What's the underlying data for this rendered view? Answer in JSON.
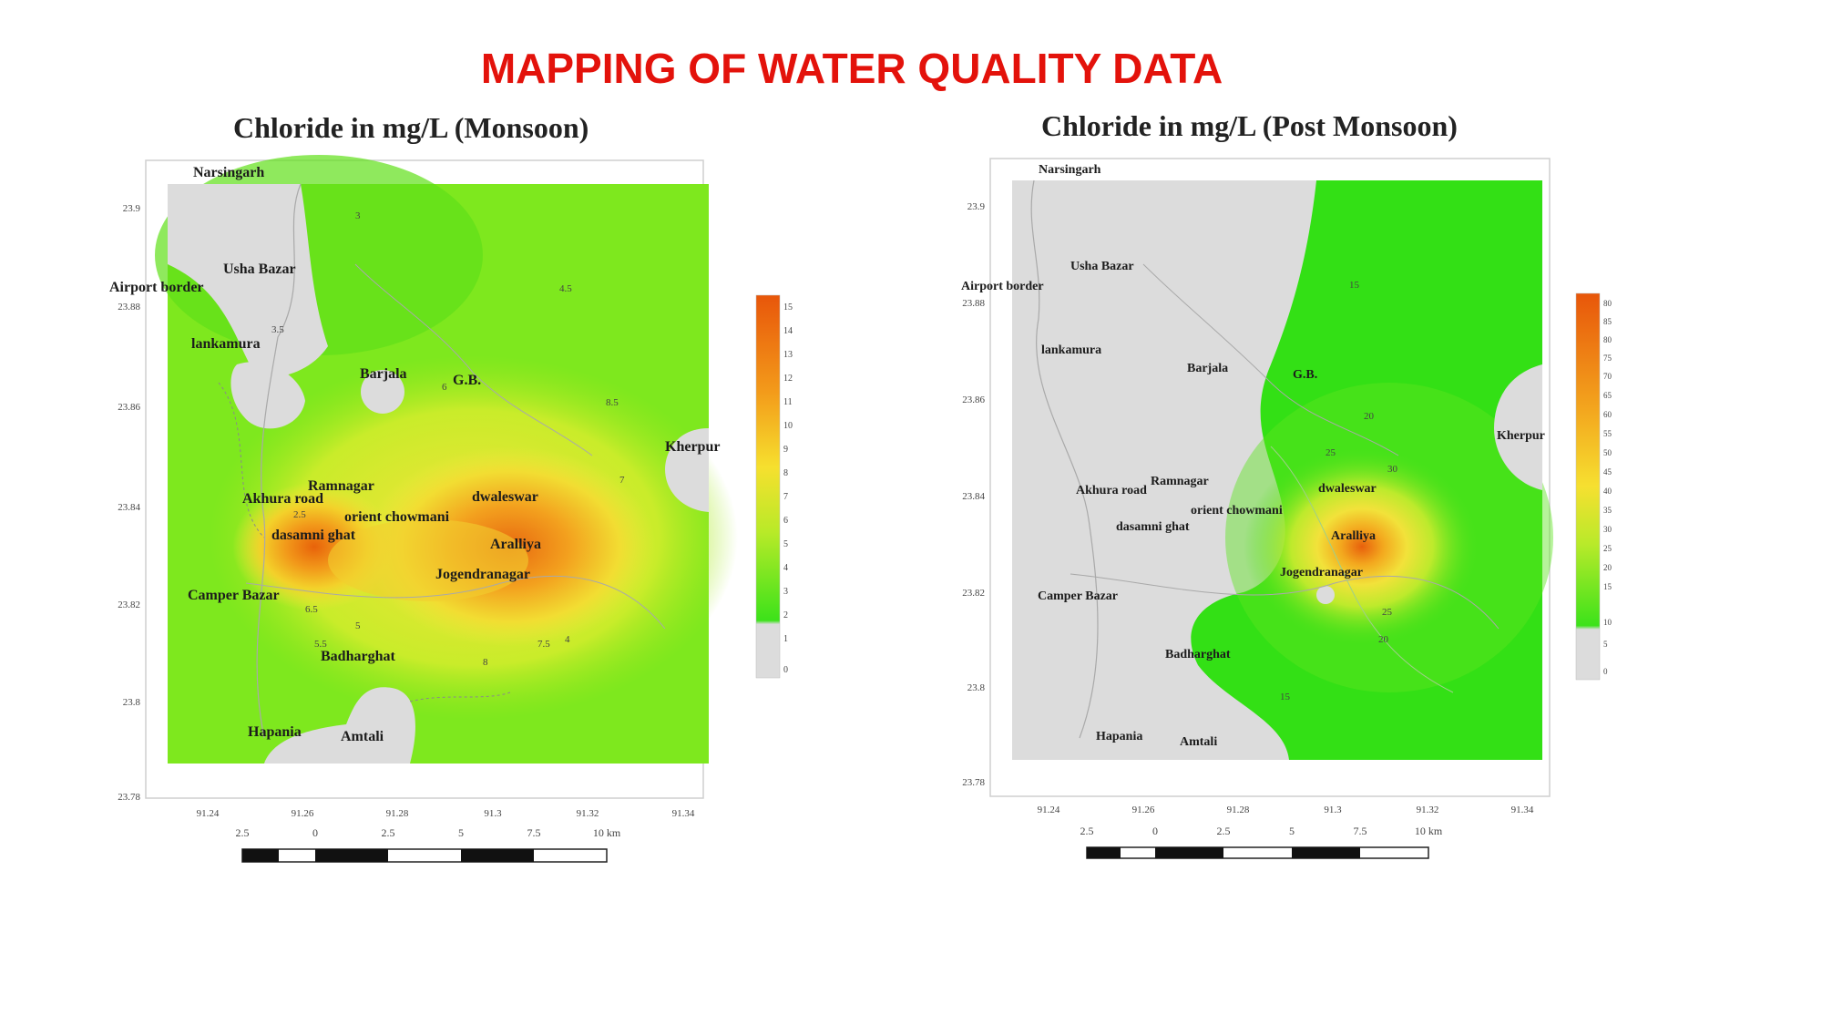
{
  "slide": {
    "title": "MAPPING OF WATER QUALITY DATA"
  },
  "maps": [
    {
      "title": "Chloride in mg/L (Monsoon)",
      "places": [
        "Narsingarh",
        "Usha Bazar",
        "Airport border",
        "lankamura",
        "Barjala",
        "G.B.",
        "Kherpur",
        "Ramnagar",
        "Akhura road",
        "dwaleswar",
        "orient chowmani",
        "dasamni ghat",
        "Aralliya",
        "Jogendranagar",
        "Camper Bazar",
        "Badharghat",
        "Hapania",
        "Amtali"
      ],
      "lat_ticks": [
        "23.9",
        "23.88",
        "23.86",
        "23.84",
        "23.82",
        "23.8",
        "23.78"
      ],
      "lon_ticks": [
        "91.24",
        "91.26",
        "91.28",
        "91.3",
        "91.32",
        "91.34"
      ],
      "scale_labels": [
        "2.5",
        "0",
        "2.5",
        "5",
        "7.5",
        "10 km"
      ],
      "legend_labels": [
        "15",
        "14",
        "13",
        "12",
        "11",
        "10",
        "9",
        "8",
        "7",
        "6",
        "5",
        "4",
        "3",
        "2",
        "1",
        "0"
      ],
      "contour_labels": [
        "2.5",
        "3",
        "3.5",
        "4",
        "4.5",
        "5",
        "5.5",
        "6",
        "6.5",
        "7",
        "7.5",
        "8",
        "8.5"
      ]
    },
    {
      "title": "Chloride in mg/L (Post Monsoon)",
      "places": [
        "Narsingarh",
        "Usha Bazar",
        "Airport border",
        "lankamura",
        "Barjala",
        "G.B.",
        "Kherpur",
        "Ramnagar",
        "Akhura road",
        "dwaleswar",
        "orient chowmani",
        "dasamni ghat",
        "Aralliya",
        "Jogendranagar",
        "Camper Bazar",
        "Badharghat",
        "Hapania",
        "Amtali"
      ],
      "lat_ticks": [
        "23.9",
        "23.88",
        "23.86",
        "23.84",
        "23.82",
        "23.8",
        "23.78"
      ],
      "lon_ticks": [
        "91.24",
        "91.26",
        "91.28",
        "91.3",
        "91.32",
        "91.34"
      ],
      "scale_labels": [
        "2.5",
        "0",
        "2.5",
        "5",
        "7.5",
        "10 km"
      ],
      "legend_labels": [
        "80",
        "85",
        "80",
        "75",
        "70",
        "65",
        "60",
        "55",
        "50",
        "45",
        "40",
        "35",
        "30",
        "25",
        "20",
        "15",
        "10",
        "5",
        "0"
      ],
      "contour_labels": [
        "15",
        "20",
        "25",
        "30",
        "25",
        "20",
        "15"
      ]
    }
  ]
}
